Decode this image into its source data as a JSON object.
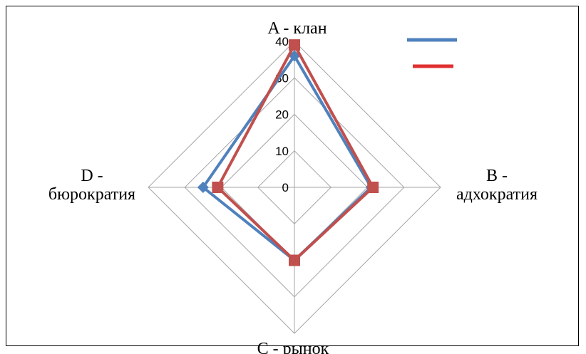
{
  "chart_data": {
    "type": "radar",
    "title": "",
    "categories": [
      {
        "lines": [
          "A - клан"
        ]
      },
      {
        "lines": [
          "B -",
          "адхократия"
        ]
      },
      {
        "lines": [
          "C - рынок"
        ]
      },
      {
        "lines": [
          "D -",
          "бюрократия"
        ]
      }
    ],
    "rlim": [
      0,
      40
    ],
    "ticks": [
      "0",
      "10",
      "20",
      "30",
      "40"
    ],
    "grid": true,
    "legend_position": "top-right",
    "series": [
      {
        "values": [
          36,
          21,
          20,
          25
        ],
        "color": "#4F81BD",
        "legend_color": "#4F81BD",
        "marker": "diamond"
      },
      {
        "values": [
          39,
          21.5,
          20,
          21
        ],
        "color": "#C0504D",
        "legend_color": "#E03030",
        "marker": "square"
      }
    ]
  }
}
